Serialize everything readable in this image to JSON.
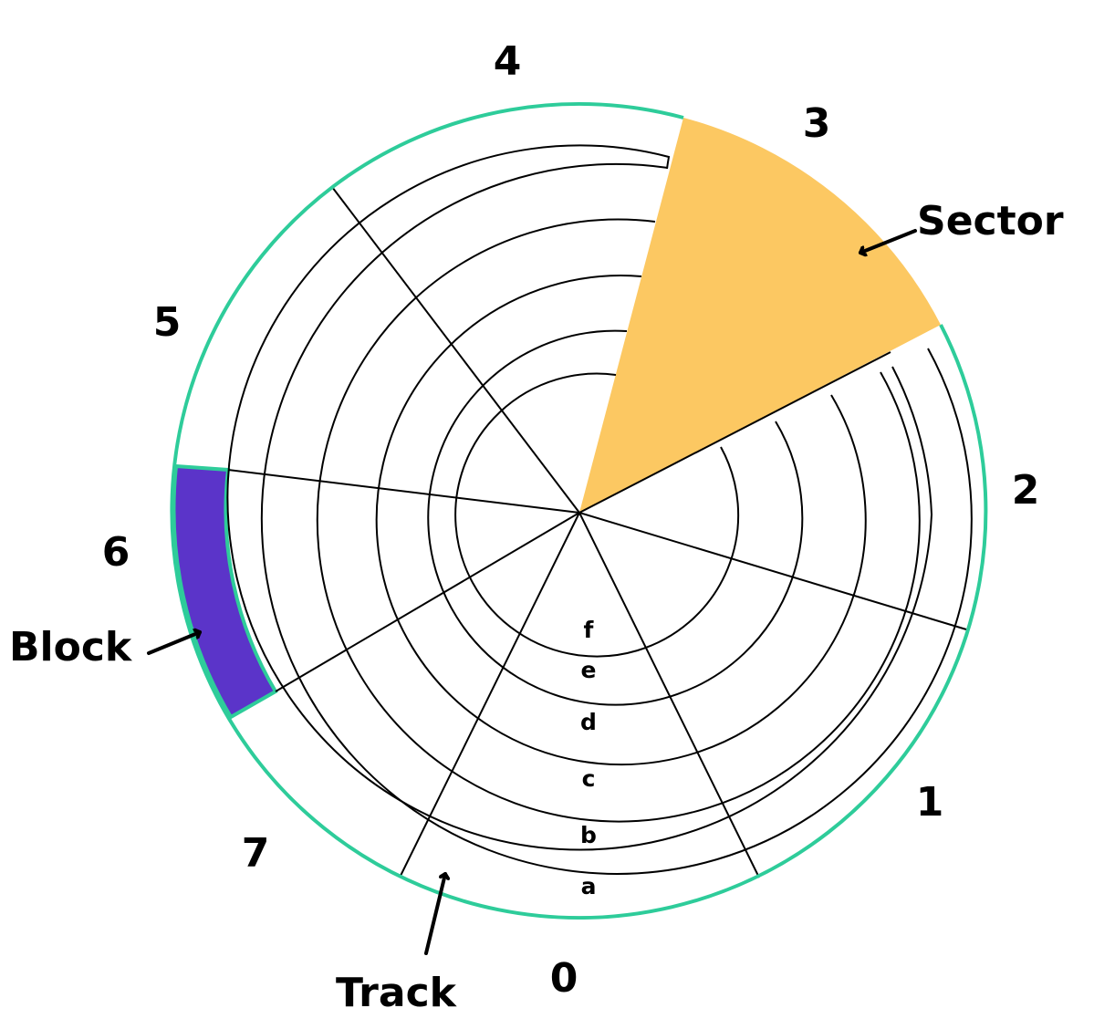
{
  "diagram": {
    "sector_numbers": [
      "0",
      "1",
      "2",
      "3",
      "4",
      "5",
      "6",
      "7"
    ],
    "track_letters": [
      "a",
      "b",
      "c",
      "d",
      "e",
      "f"
    ],
    "callouts": {
      "sector": "Sector",
      "block": "Block",
      "track": "Track"
    },
    "highlighted_sector": "3",
    "highlighted_block": {
      "sector": "6",
      "track": "a"
    },
    "colors": {
      "outer_ring": "#2ecc9a",
      "sector_fill": "#fcc862",
      "block_fill": "#5b34c9",
      "lines": "#000000",
      "background": "#ffffff"
    }
  }
}
